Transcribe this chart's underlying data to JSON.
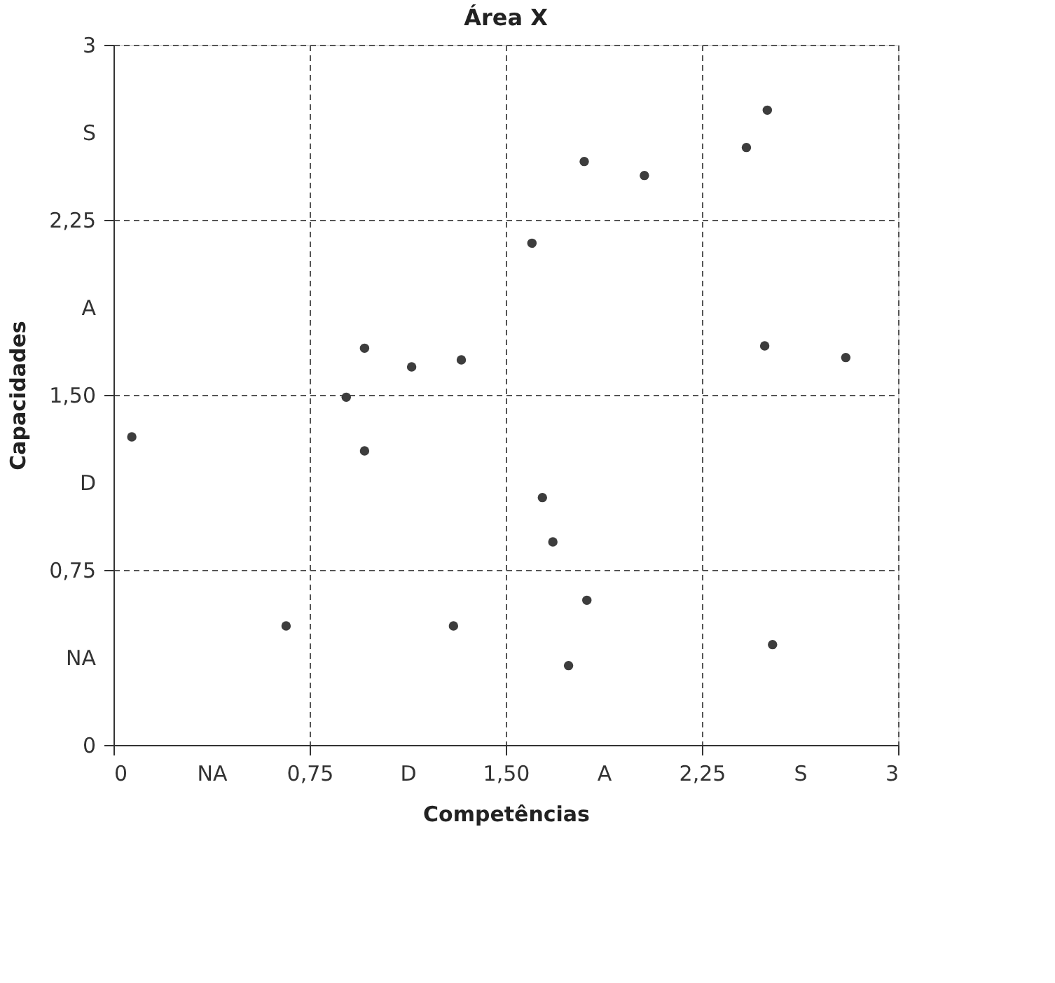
{
  "chart_data": {
    "type": "scatter",
    "title": "Área X",
    "xlabel": "Competências",
    "ylabel": "Capacidades",
    "x": [
      0.07,
      0.66,
      0.89,
      0.96,
      0.96,
      1.14,
      1.3,
      1.33,
      1.6,
      1.64,
      1.68,
      1.74,
      1.8,
      1.81,
      2.03,
      2.42,
      2.5,
      2.49,
      2.52,
      2.8
    ],
    "series": [
      {
        "color": "#3d3d3d",
        "values": [
          1.32,
          0.51,
          1.49,
          1.7,
          1.26,
          1.62,
          0.51,
          1.65,
          2.15,
          1.06,
          0.87,
          0.34,
          2.5,
          0.62,
          2.44,
          2.56,
          2.72,
          1.71,
          0.43,
          1.66
        ]
      }
    ],
    "xlim": [
      0,
      3
    ],
    "ylim": [
      0,
      3
    ],
    "xticks": [
      0,
      {
        "value": 0.375,
        "label": "NA"
      },
      {
        "value": 0.75,
        "label": "0,75"
      },
      {
        "value": 1.125,
        "label": "D"
      },
      {
        "value": 1.5,
        "label": "1,50"
      },
      {
        "value": 1.875,
        "label": "A"
      },
      {
        "value": 2.25,
        "label": "2,25"
      },
      {
        "value": 2.625,
        "label": "S"
      },
      3
    ],
    "yticks": [
      0,
      {
        "value": 0.375,
        "label": "NA"
      },
      {
        "value": 0.75,
        "label": "0,75"
      },
      {
        "value": 1.125,
        "label": "D"
      },
      {
        "value": 1.5,
        "label": "1,50"
      },
      {
        "value": 1.875,
        "label": "A"
      },
      {
        "value": 2.25,
        "label": "2,25"
      },
      {
        "value": 2.625,
        "label": "S"
      },
      3
    ],
    "grid": true,
    "marker": "circle"
  }
}
